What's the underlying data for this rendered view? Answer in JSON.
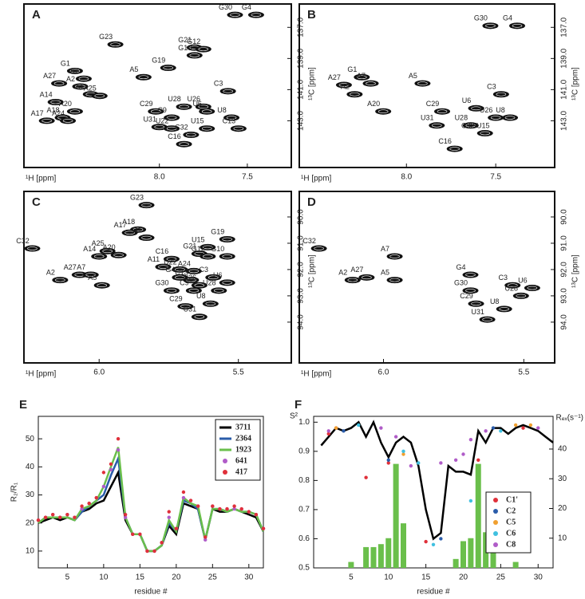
{
  "chart_data": [
    {
      "type": "scatter",
      "panel": "A",
      "xlabel": "¹H [ppm]",
      "ylabel": "¹³C [ppm]",
      "color": "#111111",
      "xlim": [
        8.77,
        7.25
      ],
      "ylim": [
        146.0,
        135.5
      ],
      "xticks": [
        {
          "value": 8,
          "label": "8.0"
        },
        7.5
      ],
      "yticks": [
        {
          "value": 137,
          "label": "137.0"
        },
        {
          "value": 139,
          "label": "139.0"
        },
        {
          "value": 141,
          "label": "141.0"
        },
        {
          "value": 143,
          "label": "143.0"
        }
      ],
      "point_labels": [
        "G30",
        "G4",
        "G23",
        "G21",
        "G12",
        "G10",
        "G19",
        "A5",
        "G1",
        "A7",
        "A27",
        "A2",
        "A11",
        "A25",
        "A14",
        "A20",
        "A18",
        "A24",
        "A17",
        "C3",
        "U28",
        "U26",
        "U6",
        "C29",
        "C9",
        "U8",
        "U31",
        "U22",
        "U15",
        "C13",
        "C32",
        "C16"
      ],
      "x": [
        7.57,
        7.45,
        8.25,
        7.8,
        7.75,
        7.8,
        7.95,
        8.09,
        8.48,
        8.43,
        8.57,
        8.45,
        8.39,
        8.34,
        8.59,
        8.48,
        8.55,
        8.52,
        8.64,
        7.61,
        7.86,
        7.75,
        7.73,
        8.02,
        7.93,
        7.59,
        8.0,
        7.93,
        7.73,
        7.55,
        7.82,
        7.86
      ],
      "values": [
        136.2,
        136.2,
        138.1,
        138.3,
        138.4,
        138.8,
        139.6,
        140.2,
        139.8,
        140.3,
        140.6,
        140.8,
        141.3,
        141.4,
        141.8,
        142.4,
        142.8,
        143.0,
        143.0,
        141.1,
        142.1,
        142.1,
        142.4,
        142.4,
        142.8,
        142.8,
        143.4,
        143.5,
        143.5,
        143.5,
        143.9,
        144.5
      ]
    },
    {
      "type": "scatter",
      "panel": "B",
      "xlabel": "¹H [ppm]",
      "ylabel": "¹³C [ppm]",
      "color": "#111111",
      "xlim": [
        8.6,
        7.17
      ],
      "ylim": [
        146.0,
        135.5
      ],
      "xticks": [
        {
          "value": 8,
          "label": "8.0"
        },
        7.5
      ],
      "yticks": [
        {
          "value": 137,
          "label": "137.0"
        },
        {
          "value": 139,
          "label": "139.0"
        },
        {
          "value": 141,
          "label": "141.0"
        },
        {
          "value": 143,
          "label": "143.0"
        }
      ],
      "point_labels": [
        "G4",
        "G30",
        "G1",
        "A7",
        "A27",
        "A2",
        "A5",
        "C3",
        "A20",
        "C29",
        "U6",
        "U8",
        "U26",
        "U28",
        "U31",
        "C32/U15",
        "C16"
      ],
      "x": [
        7.38,
        7.53,
        8.25,
        8.2,
        8.35,
        8.29,
        7.91,
        7.47,
        8.13,
        7.8,
        7.61,
        7.42,
        7.5,
        7.64,
        7.83,
        7.56,
        7.73
      ],
      "values": [
        136.9,
        136.9,
        140.2,
        140.6,
        140.7,
        141.3,
        140.6,
        141.3,
        142.4,
        142.4,
        142.2,
        142.8,
        142.8,
        143.3,
        143.3,
        143.8,
        144.8
      ]
    },
    {
      "type": "scatter",
      "panel": "C",
      "xlabel": "¹H [ppm]",
      "ylabel": "¹³C [ppm]",
      "color": "#111111",
      "xlim": [
        6.27,
        5.31
      ],
      "ylim": [
        95.55,
        89.03
      ],
      "xticks": [
        {
          "value": 6,
          "label": "6.0"
        },
        5.5
      ],
      "yticks": [
        {
          "value": 90,
          "label": "90.0"
        },
        {
          "value": 91,
          "label": "91.0"
        },
        {
          "value": 92,
          "label": "92.0"
        },
        {
          "value": 93,
          "label": "93.0"
        },
        {
          "value": 94,
          "label": "94.0"
        }
      ],
      "point_labels": [
        "G23",
        "A18",
        "A17",
        "G1",
        "A25",
        "A20",
        "A14",
        "U15",
        "G19",
        "G21",
        "G12",
        "G10",
        "C16",
        "A11",
        "U22",
        "A24",
        "C32",
        "A27",
        "A7",
        "A2",
        "A5",
        "C13",
        "G4",
        "C3",
        "U6",
        "U26",
        "G30",
        "U28",
        "C9",
        "U8",
        "C29",
        "U31"
      ],
      "x": [
        5.83,
        5.86,
        5.89,
        5.83,
        5.97,
        5.93,
        6.0,
        5.61,
        5.54,
        5.64,
        5.61,
        5.54,
        5.74,
        5.77,
        5.71,
        5.66,
        6.24,
        6.07,
        6.03,
        6.14,
        5.99,
        5.67,
        5.71,
        5.59,
        5.54,
        5.64,
        5.74,
        5.57,
        5.66,
        5.6,
        5.69,
        5.64
      ],
      "values": [
        89.55,
        90.48,
        90.6,
        90.79,
        91.3,
        91.45,
        91.5,
        91.15,
        90.85,
        91.4,
        91.5,
        91.5,
        91.6,
        91.9,
        92.0,
        92.06,
        91.2,
        92.2,
        92.2,
        92.4,
        92.6,
        92.4,
        92.3,
        92.3,
        92.5,
        92.6,
        92.8,
        92.8,
        92.8,
        93.3,
        93.4,
        93.8
      ]
    },
    {
      "type": "scatter",
      "panel": "D",
      "xlabel": "¹H [ppm]",
      "ylabel": "¹³C [ppm]",
      "color": "#111111",
      "xlim": [
        6.3,
        5.39
      ],
      "ylim": [
        95.55,
        89.03
      ],
      "xticks": [
        {
          "value": 6,
          "label": "6.0"
        },
        5.5
      ],
      "yticks": [
        {
          "value": 90,
          "label": "90.0"
        },
        {
          "value": 91,
          "label": "91.0"
        },
        {
          "value": 92,
          "label": "92.0"
        },
        {
          "value": 93,
          "label": "93.0"
        },
        {
          "value": 94,
          "label": "94.0"
        }
      ],
      "point_labels": [
        "C32",
        "A27",
        "A7",
        "A2",
        "A5",
        "G4",
        "C3",
        "U6",
        "G30",
        "U28",
        "C29",
        "U8",
        "U31"
      ],
      "x": [
        6.23,
        6.06,
        5.96,
        6.11,
        5.96,
        5.69,
        5.54,
        5.47,
        5.69,
        5.51,
        5.67,
        5.57,
        5.63
      ],
      "values": [
        91.2,
        92.3,
        91.5,
        92.4,
        92.4,
        92.2,
        92.6,
        92.7,
        92.8,
        93.0,
        93.3,
        93.5,
        93.9
      ]
    },
    {
      "type": "line",
      "panel": "E",
      "xlabel": "residue #",
      "ylabel": "R₂/R₁",
      "legend": "upper right",
      "xlim": [
        1,
        32
      ],
      "ylim": [
        4,
        58
      ],
      "xticks": [
        5,
        10,
        15,
        20,
        25,
        30
      ],
      "yticks": [
        10,
        20,
        30,
        40,
        50
      ],
      "x": [
        1,
        2,
        3,
        4,
        5,
        6,
        7,
        8,
        9,
        10,
        11,
        12,
        13,
        14,
        15,
        16,
        17,
        18,
        19,
        20,
        21,
        22,
        23,
        24,
        25,
        26,
        27,
        28,
        29,
        30,
        31,
        32
      ],
      "series": [
        {
          "name": "3711",
          "color": "#000000",
          "mode": "line",
          "values": [
            20,
            21,
            22,
            21,
            22,
            21,
            24,
            25,
            27,
            28,
            33,
            38,
            21,
            16,
            16,
            10,
            10,
            12,
            19,
            16,
            27,
            26,
            25,
            14,
            25,
            24,
            24,
            25,
            24,
            23,
            22,
            17
          ]
        },
        {
          "name": "2364",
          "color": "#2a5caa",
          "mode": "line",
          "values": [
            20,
            22,
            22,
            22,
            22,
            21,
            24,
            26,
            28,
            30,
            37,
            43,
            22,
            16,
            16,
            10,
            10,
            12,
            20,
            17,
            28,
            27,
            25,
            14,
            25,
            25,
            24,
            25,
            24,
            24,
            23,
            17
          ]
        },
        {
          "name": "1923",
          "color": "#6abf4b",
          "mode": "line",
          "values": [
            20,
            22,
            22,
            22,
            22,
            21,
            25,
            26,
            28,
            33,
            40,
            47,
            22,
            16,
            16,
            10,
            10,
            12,
            21,
            17,
            29,
            27,
            26,
            14,
            25,
            25,
            24,
            25,
            24,
            24,
            23,
            17
          ]
        },
        {
          "name": "641",
          "color": "#b05cc8",
          "mode": "markers",
          "values": [
            21,
            22,
            23,
            22,
            23,
            22,
            25,
            27,
            29,
            33,
            39,
            46,
            22,
            16,
            16,
            10,
            10,
            13,
            22,
            18,
            29,
            28,
            26,
            14,
            26,
            25,
            25,
            25,
            25,
            24,
            23,
            18
          ]
        },
        {
          "name": "417",
          "color": "#e0303a",
          "mode": "markers",
          "values": [
            21,
            22,
            23,
            22,
            23,
            22,
            26,
            27,
            29,
            38,
            41,
            50,
            23,
            16,
            16,
            10,
            10,
            13,
            24,
            18,
            31,
            28,
            26,
            15,
            26,
            25,
            25,
            26,
            25,
            24,
            23,
            18
          ]
        }
      ]
    },
    {
      "type": "combo",
      "panel": "F",
      "xlabel": "residue #",
      "ylabel": "S²",
      "y2label": "Rₑₓ(s⁻¹)",
      "legend": "lower right",
      "xlim": [
        0,
        32
      ],
      "ylim": [
        0.5,
        1.02
      ],
      "y2lim": [
        0,
        51
      ],
      "xticks": [
        5,
        10,
        15,
        20,
        25,
        30
      ],
      "yticks": [
        0.5,
        0.6,
        0.7,
        0.8,
        0.9,
        {
          "value": 1,
          "label": "1.0"
        }
      ],
      "y2ticks": [
        10,
        20,
        30,
        40
      ],
      "x": [
        1,
        2,
        3,
        4,
        5,
        6,
        7,
        8,
        9,
        10,
        11,
        12,
        13,
        14,
        15,
        16,
        17,
        18,
        19,
        20,
        21,
        22,
        23,
        24,
        25,
        26,
        27,
        28,
        29,
        30,
        31,
        32
      ],
      "line": {
        "color": "#000000",
        "values": [
          0.92,
          0.95,
          0.98,
          0.97,
          0.98,
          1.0,
          0.95,
          1.0,
          0.93,
          0.88,
          0.93,
          0.95,
          0.93,
          0.85,
          0.7,
          0.6,
          0.62,
          0.85,
          0.83,
          0.83,
          0.82,
          0.97,
          0.93,
          0.98,
          0.98,
          0.96,
          0.98,
          0.99,
          0.98,
          0.97,
          0.95,
          0.93
        ]
      },
      "bars": {
        "color": "#6abf4b",
        "axis": "y2",
        "values": [
          0,
          0,
          0,
          0,
          2,
          0,
          7,
          7,
          8,
          10,
          35,
          15,
          0,
          0,
          0,
          0,
          0,
          0,
          3,
          9,
          10,
          35,
          12,
          13,
          0,
          0,
          2,
          0,
          0,
          0,
          0,
          0
        ]
      },
      "series": [
        {
          "name": "C1'",
          "color": "#e0303a",
          "x": [
            2,
            3,
            7,
            10,
            15,
            22,
            28
          ],
          "values": [
            0.96,
            0.98,
            0.81,
            0.86,
            0.59,
            0.87,
            0.98
          ]
        },
        {
          "name": "C2",
          "color": "#2a5caa",
          "x": [
            4,
            10,
            17,
            24
          ],
          "values": [
            0.97,
            0.87,
            0.6,
            0.98
          ]
        },
        {
          "name": "C5",
          "color": "#f0a030",
          "x": [
            3,
            12,
            27,
            29
          ],
          "values": [
            0.98,
            0.89,
            0.99,
            0.99
          ]
        },
        {
          "name": "C6",
          "color": "#40c0e0",
          "x": [
            6,
            12,
            14,
            16,
            21,
            25
          ],
          "values": [
            0.99,
            0.9,
            0.86,
            0.58,
            0.73,
            0.97
          ]
        },
        {
          "name": "C8",
          "color": "#b05cc8",
          "x": [
            2,
            9,
            11,
            13,
            17,
            19,
            20,
            21,
            23,
            30
          ],
          "values": [
            0.97,
            0.98,
            0.95,
            0.85,
            0.86,
            0.87,
            0.89,
            0.94,
            0.97,
            0.98
          ]
        }
      ]
    }
  ]
}
